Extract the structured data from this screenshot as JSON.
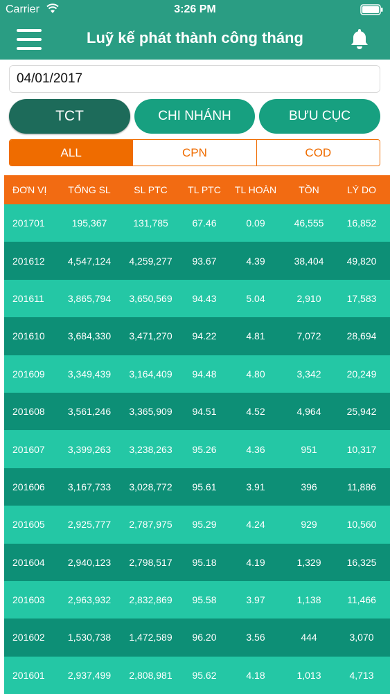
{
  "status_bar": {
    "carrier": "Carrier",
    "time": "3:26 PM"
  },
  "nav": {
    "title": "Luỹ kế phát thành công tháng"
  },
  "date": {
    "value": "04/01/2017"
  },
  "scope_tabs": [
    {
      "label": "TCT",
      "active": true
    },
    {
      "label": "CHI NHÁNH",
      "active": false
    },
    {
      "label": "BƯU CỤC",
      "active": false
    }
  ],
  "type_tabs": [
    {
      "label": "ALL",
      "active": true
    },
    {
      "label": "CPN",
      "active": false
    },
    {
      "label": "COD",
      "active": false
    }
  ],
  "table": {
    "headers": [
      "ĐƠN VỊ",
      "TỔNG SL",
      "SL PTC",
      "TL PTC",
      "TL HOÀN",
      "TỒN",
      "LÝ DO"
    ],
    "rows": [
      [
        "201701",
        "195,367",
        "131,785",
        "67.46",
        "0.09",
        "46,555",
        "16,852"
      ],
      [
        "201612",
        "4,547,124",
        "4,259,277",
        "93.67",
        "4.39",
        "38,404",
        "49,820"
      ],
      [
        "201611",
        "3,865,794",
        "3,650,569",
        "94.43",
        "5.04",
        "2,910",
        "17,583"
      ],
      [
        "201610",
        "3,684,330",
        "3,471,270",
        "94.22",
        "4.81",
        "7,072",
        "28,694"
      ],
      [
        "201609",
        "3,349,439",
        "3,164,409",
        "94.48",
        "4.80",
        "3,342",
        "20,249"
      ],
      [
        "201608",
        "3,561,246",
        "3,365,909",
        "94.51",
        "4.52",
        "4,964",
        "25,942"
      ],
      [
        "201607",
        "3,399,263",
        "3,238,263",
        "95.26",
        "4.36",
        "951",
        "10,317"
      ],
      [
        "201606",
        "3,167,733",
        "3,028,772",
        "95.61",
        "3.91",
        "396",
        "11,886"
      ],
      [
        "201605",
        "2,925,777",
        "2,787,975",
        "95.29",
        "4.24",
        "929",
        "10,560"
      ],
      [
        "201604",
        "2,940,123",
        "2,798,517",
        "95.18",
        "4.19",
        "1,329",
        "16,325"
      ],
      [
        "201603",
        "2,963,932",
        "2,832,869",
        "95.58",
        "3.97",
        "1,138",
        "11,466"
      ],
      [
        "201602",
        "1,530,738",
        "1,472,589",
        "96.20",
        "3.56",
        "444",
        "3,070"
      ],
      [
        "201601",
        "2,937,499",
        "2,808,981",
        "95.62",
        "4.18",
        "1,013",
        "4,713"
      ]
    ]
  },
  "colors": {
    "header": "#2a9d83",
    "active_scope": "#1d6b5a",
    "inactive_scope": "#17a080",
    "accent": "#ef6c00",
    "row_light": "#24c7a5",
    "row_dark": "#0d8f76"
  },
  "icons": [
    "wifi-icon",
    "battery-icon",
    "menu-icon",
    "bell-icon"
  ]
}
